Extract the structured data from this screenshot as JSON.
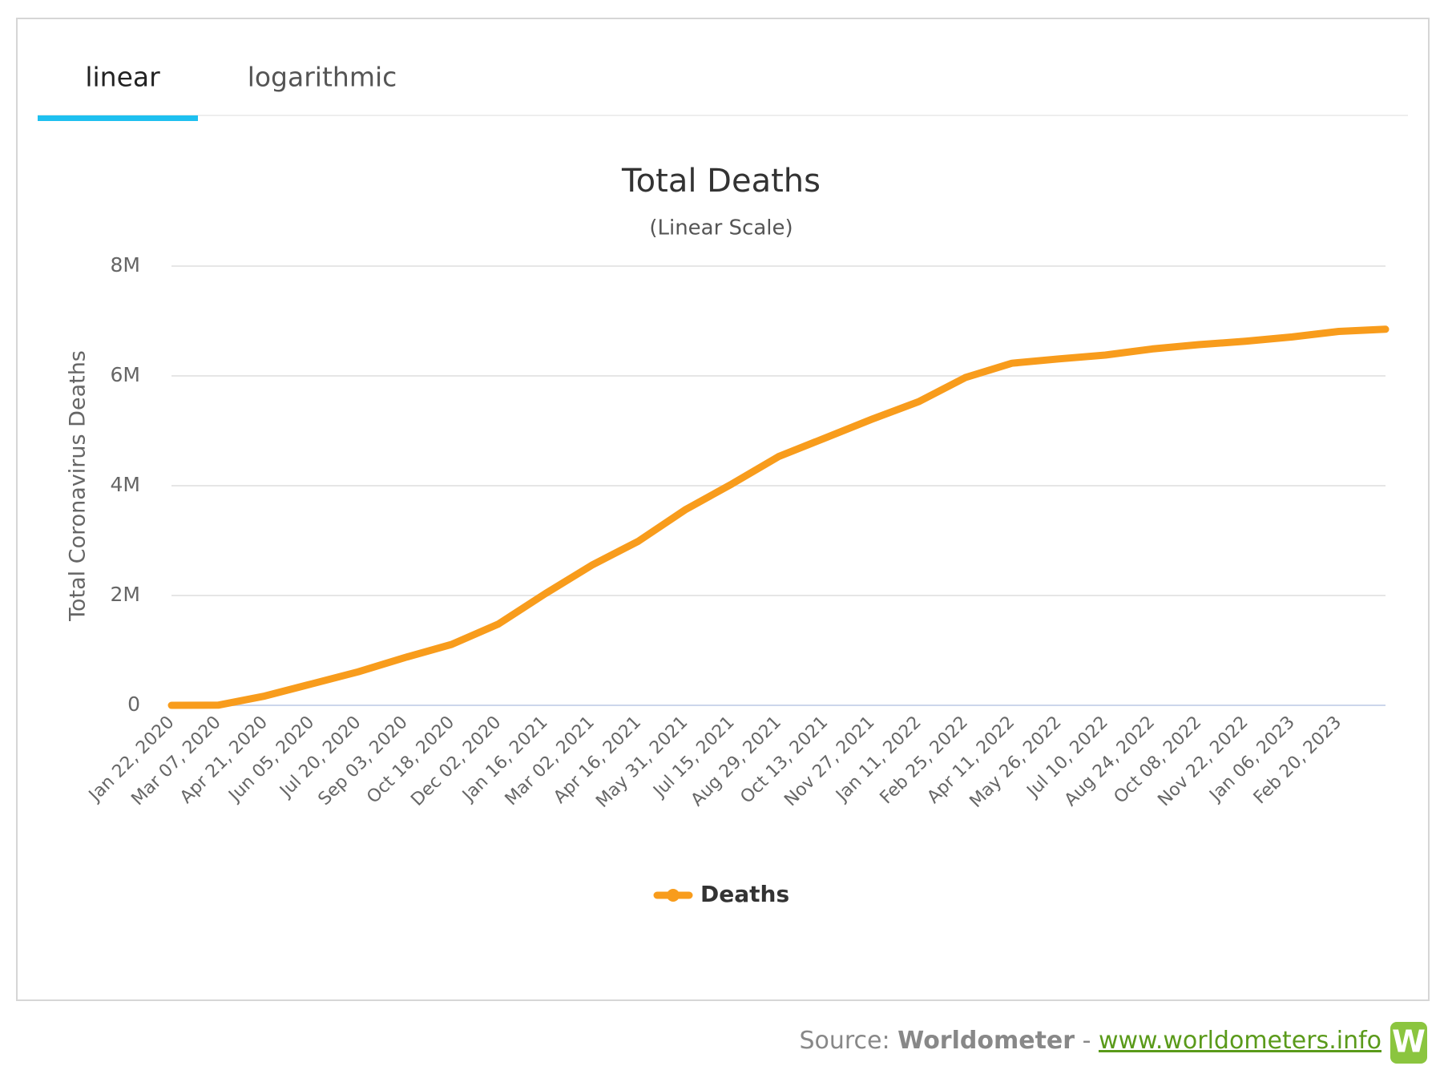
{
  "tabs": [
    "linear",
    "logarithmic"
  ],
  "chart_data": {
    "type": "line",
    "title": "Total Deaths",
    "subtitle": "(Linear Scale)",
    "y_label": "Total Coronavirus Deaths",
    "categories": [
      "Jan 22, 2020",
      "Mar 07, 2020",
      "Apr 21, 2020",
      "Jun 05, 2020",
      "Jul 20, 2020",
      "Sep 03, 2020",
      "Oct 18, 2020",
      "Dec 02, 2020",
      "Jan 16, 2021",
      "Mar 02, 2021",
      "Apr 16, 2021",
      "May 31, 2021",
      "Jul 15, 2021",
      "Aug 29, 2021",
      "Oct 13, 2021",
      "Nov 27, 2021",
      "Jan 11, 2022",
      "Feb 25, 2022",
      "Apr 11, 2022",
      "May 26, 2022",
      "Jul 10, 2022",
      "Aug 24, 2022",
      "Oct 08, 2022",
      "Nov 22, 2022",
      "Jan 06, 2023",
      "Feb 20, 2023",
      null
    ],
    "series": [
      {
        "name": "Deaths",
        "color": "#f89c1c",
        "values": [
          0,
          3000,
          170000,
          390000,
          610000,
          870000,
          1110000,
          1480000,
          2030000,
          2550000,
          2990000,
          3560000,
          4030000,
          4530000,
          4870000,
          5210000,
          5530000,
          5970000,
          6230000,
          6310000,
          6380000,
          6490000,
          6570000,
          6630000,
          6710000,
          6810000,
          6850000
        ]
      }
    ],
    "ylim": [
      0,
      8000000
    ],
    "yticks": [
      0,
      {
        "value": 2000000,
        "label": "2M"
      },
      {
        "value": 4000000,
        "label": "4M"
      },
      {
        "value": 6000000,
        "label": "6M"
      },
      {
        "value": 8000000,
        "label": "8M"
      }
    ],
    "grid": true
  },
  "source": {
    "prefix": "Source:",
    "name": "Worldometer",
    "separator": "-",
    "url": "www.worldometers.info"
  }
}
